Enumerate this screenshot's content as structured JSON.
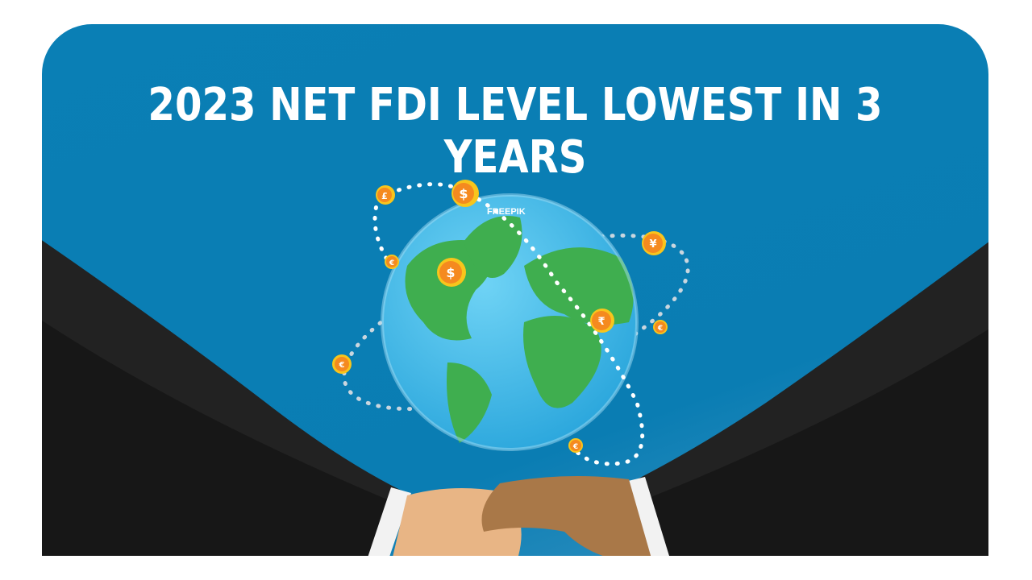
{
  "headline": "2023 NET FDI LEVEL LOWEST IN 3 YEARS",
  "watermark": "FREEPIK",
  "colors": {
    "background": "#0a7db3",
    "globe_ocean": "#4fc3ef",
    "land": "#3fae4f",
    "coin": "#f58a1f",
    "sleeve": "#222222"
  },
  "coins": [
    {
      "symbol": "$"
    },
    {
      "symbol": "£"
    },
    {
      "symbol": "€"
    },
    {
      "symbol": "$"
    },
    {
      "symbol": "¥"
    },
    {
      "symbol": "₹"
    },
    {
      "symbol": "€"
    },
    {
      "symbol": "€"
    },
    {
      "symbol": "€"
    }
  ]
}
